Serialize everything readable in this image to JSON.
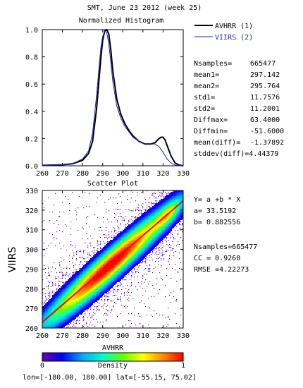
{
  "header": {
    "title": "SMT,  June 23 2012 (week 25)"
  },
  "legend": {
    "items": [
      {
        "label": "AVHRR (1)",
        "color": "#000000"
      },
      {
        "label": "VIIRS (2)",
        "color": "#1f1fbf"
      }
    ]
  },
  "stats": {
    "rows": [
      {
        "key": "Nsamples=",
        "value": "665477"
      },
      {
        "key": "mean1=",
        "value": "297.142"
      },
      {
        "key": "mean2=",
        "value": "295.764"
      },
      {
        "key": "std1=",
        "value": "11.7576"
      },
      {
        "key": "std2=",
        "value": "11.2001"
      },
      {
        "key": "Diffmax=",
        "value": "63.4000"
      },
      {
        "key": "Diffmin=",
        "value": "-51.6000"
      },
      {
        "key": "mean(diff)=",
        "value": "-1.37892"
      },
      {
        "key": "stddev(diff)=",
        "value": "4.44379"
      }
    ]
  },
  "fit": {
    "equation": "Y= a +b * X",
    "a": "a= 33.5192",
    "b": "b= 0.882556",
    "nsamples": "Nsamples=665477",
    "cc": "CC = 0.9260",
    "rmse": "RMSE =4.22273"
  },
  "footer": {
    "coords": "lon=[-180.00, 180.00] lat=[-55.15, 75.02]"
  },
  "colorbar": {
    "label": "Density",
    "min_label": "0",
    "max_label": "1",
    "stops": [
      "#6a00a8",
      "#0000ff",
      "#00aaff",
      "#00ffcc",
      "#66ff00",
      "#ffff00",
      "#ff8800",
      "#ff0000"
    ]
  },
  "chart_data": [
    {
      "type": "line",
      "title": "Normalized Histogram",
      "xlabel": "",
      "ylabel": "",
      "xlim": [
        260,
        330
      ],
      "ylim": [
        0,
        1.0
      ],
      "xticks": [
        260,
        270,
        280,
        290,
        300,
        310,
        320,
        330
      ],
      "yticks": [
        0.0,
        0.2,
        0.4,
        0.6,
        0.8,
        1.0
      ],
      "ytick_labels": [
        "0.0",
        "0.2",
        "0.4",
        "0.6",
        "0.8",
        "1.0"
      ],
      "series": [
        {
          "name": "AVHRR (1)",
          "x": [
            260,
            265,
            270,
            275,
            280,
            283,
            285,
            287,
            289,
            290,
            291,
            292,
            293,
            294,
            295,
            297,
            299,
            301,
            303,
            305,
            308,
            311,
            314,
            316,
            318,
            319,
            320,
            321,
            322,
            324,
            326,
            328,
            330
          ],
          "y": [
            0.003,
            0.005,
            0.008,
            0.015,
            0.04,
            0.09,
            0.18,
            0.42,
            0.78,
            0.92,
            0.99,
            1.0,
            0.97,
            0.86,
            0.7,
            0.49,
            0.38,
            0.31,
            0.26,
            0.22,
            0.18,
            0.16,
            0.16,
            0.17,
            0.2,
            0.21,
            0.21,
            0.19,
            0.15,
            0.07,
            0.02,
            0.005,
            0.0
          ]
        },
        {
          "name": "VIIRS (2)",
          "x": [
            260,
            265,
            270,
            275,
            280,
            283,
            285,
            287,
            289,
            290,
            291,
            292,
            293,
            294,
            295,
            297,
            299,
            301,
            303,
            305,
            308,
            311,
            314,
            316,
            318,
            320,
            322,
            324,
            326,
            328,
            330
          ],
          "y": [
            0.003,
            0.005,
            0.008,
            0.015,
            0.05,
            0.11,
            0.24,
            0.52,
            0.86,
            0.95,
            0.99,
            0.98,
            0.9,
            0.77,
            0.62,
            0.44,
            0.35,
            0.29,
            0.25,
            0.21,
            0.18,
            0.16,
            0.16,
            0.16,
            0.14,
            0.1,
            0.05,
            0.02,
            0.005,
            0.0,
            0.0
          ]
        }
      ]
    },
    {
      "type": "heatmap",
      "title": "Scatter Plot",
      "xlabel": "AVHRR",
      "ylabel": "VIIRS",
      "xlim": [
        260,
        330
      ],
      "ylim": [
        260,
        330
      ],
      "xticks": [
        260,
        270,
        280,
        290,
        300,
        310,
        320,
        330
      ],
      "yticks": [
        260,
        270,
        280,
        290,
        300,
        310,
        320,
        330
      ],
      "fit_line": {
        "a": 33.5192,
        "b": 0.882556,
        "color": "#ff0000"
      },
      "density_ridge": {
        "x_center": 293,
        "y_center": 292,
        "slope": 0.9
      },
      "colorbar_range": [
        0,
        1
      ]
    }
  ]
}
